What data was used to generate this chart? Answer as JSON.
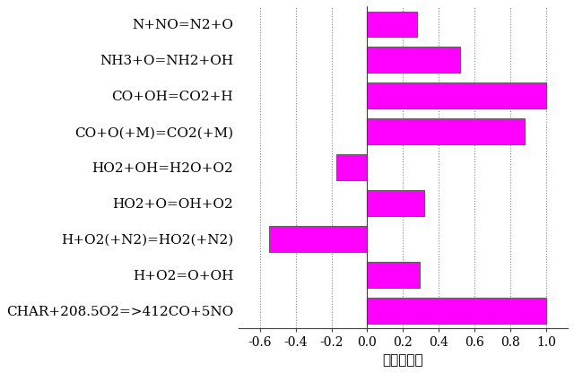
{
  "categories": [
    "CHAR+208.5O2=>412CO+5NO",
    "H+O2=O+OH",
    "H+O2(+N2)=HO2(+N2)",
    "HO2+O=OH+O2",
    "HO2+OH=H2O+O2",
    "CO+O(+M)=CO2(+M)",
    "CO+OH=CO2+H",
    "NH3+O=NH2+OH",
    "N+NO=N2+O"
  ],
  "values": [
    1.0,
    0.295,
    -0.55,
    0.32,
    -0.175,
    0.88,
    1.0,
    0.52,
    0.28
  ],
  "bar_color": "#FF00FF",
  "bar_edge_color": "#606060",
  "xlabel": "敏感性系数",
  "xlim": [
    -0.72,
    1.12
  ],
  "xticks": [
    -0.6,
    -0.4,
    -0.2,
    0.0,
    0.2,
    0.4,
    0.6,
    0.8,
    1.0
  ],
  "grid_color": "#888888",
  "background_color": "#FFFFFF",
  "label_fontsize": 11,
  "tick_fontsize": 10,
  "bar_height": 0.72
}
